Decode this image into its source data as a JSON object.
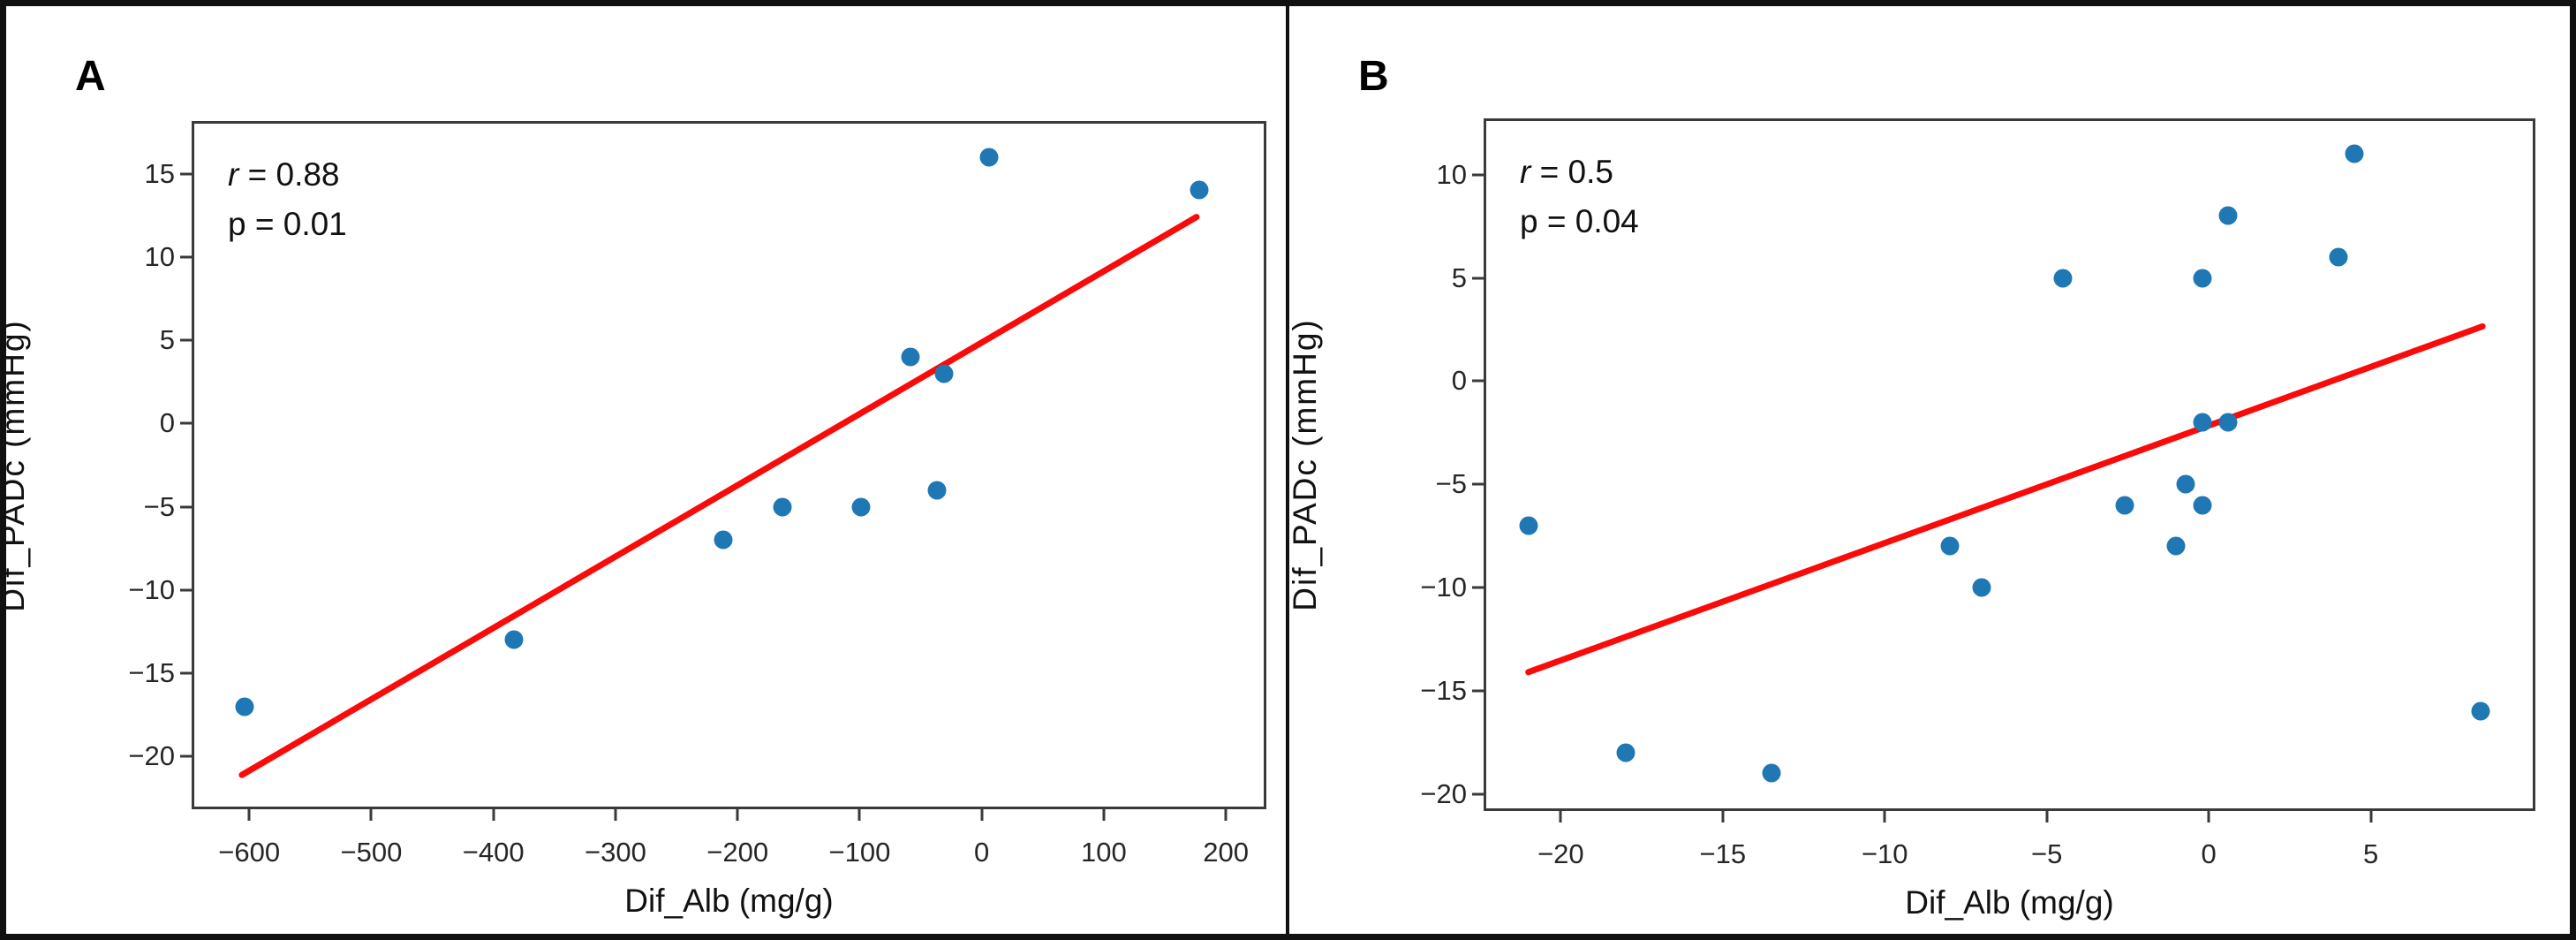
{
  "figure": {
    "border_color": "#111111",
    "background": "#ffffff"
  },
  "chart_data": [
    {
      "type": "scatter",
      "panel_label": "A",
      "stats": {
        "r_sym": "r",
        "r_rest": " = 0.88",
        "p_sym": "p",
        "p_rest": " = 0.01"
      },
      "xlabel": "Dif_Alb (mg/g)",
      "ylabel": "Dif_PADc (mmHg)",
      "xlim": [
        -645,
        231
      ],
      "ylim": [
        -23,
        18
      ],
      "x_ticks": [
        -600,
        -500,
        -400,
        -300,
        -200,
        -100,
        0,
        100,
        200
      ],
      "y_ticks": [
        15,
        10,
        5,
        0,
        -5,
        -10,
        -15,
        -20
      ],
      "grid": false,
      "legend": "none",
      "points": [
        [
          -604,
          -17
        ],
        [
          -383,
          -13
        ],
        [
          -212,
          -7
        ],
        [
          -163,
          -5
        ],
        [
          -99,
          -5
        ],
        [
          -58,
          4
        ],
        [
          -37,
          -4
        ],
        [
          -31,
          3
        ],
        [
          6,
          16
        ],
        [
          178,
          14
        ]
      ],
      "trendline": {
        "x1": -606,
        "y1": -21.1,
        "x2": 176,
        "y2": 12.4
      },
      "point_color": "#1f77b4",
      "line_color": "#fb0a0a",
      "spine_color": "#3a3a3a"
    },
    {
      "type": "scatter",
      "panel_label": "B",
      "stats": {
        "r_sym": "r",
        "r_rest": " = 0.5",
        "p_sym": "p",
        "p_rest": " = 0.04"
      },
      "xlabel": "Dif_Alb (mg/g)",
      "ylabel": "Dif_PADc (mmHg)",
      "xlim": [
        -22.3,
        10
      ],
      "ylim": [
        -20.7,
        12.6
      ],
      "x_ticks": [
        -20,
        -15,
        -10,
        -5,
        0,
        5
      ],
      "y_ticks": [
        10,
        5,
        0,
        -5,
        -10,
        -15,
        -20
      ],
      "grid": false,
      "legend": "none",
      "points": [
        [
          -21,
          -7
        ],
        [
          -18,
          -18
        ],
        [
          -13.5,
          -19
        ],
        [
          -8,
          -8
        ],
        [
          -7,
          -10
        ],
        [
          -4.5,
          5
        ],
        [
          -2.6,
          -6
        ],
        [
          -1,
          -8
        ],
        [
          -0.7,
          -5
        ],
        [
          -0.2,
          -6
        ],
        [
          -0.2,
          5
        ],
        [
          -0.2,
          -2
        ],
        [
          0.6,
          8
        ],
        [
          0.6,
          -2
        ],
        [
          4,
          6
        ],
        [
          4.5,
          11
        ],
        [
          8.4,
          -16
        ]
      ],
      "trendline": {
        "x1": -21,
        "y1": -14.1,
        "x2": 8.45,
        "y2": 2.65
      },
      "point_color": "#1f77b4",
      "line_color": "#fb0a0a",
      "spine_color": "#3a3a3a"
    }
  ]
}
